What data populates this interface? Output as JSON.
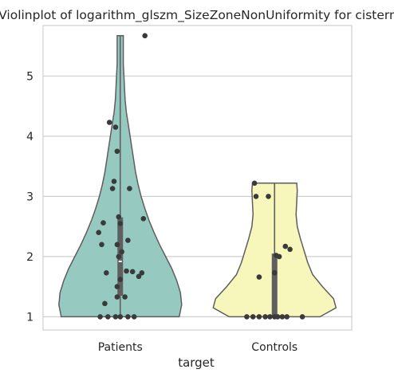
{
  "chart_data": {
    "type": "violin",
    "title": "Violinplot of logarithm_glszm_SizeZoneNonUniformity for cistern",
    "xlabel": "target",
    "ylabel": "",
    "categories": [
      "Patients",
      "Controls"
    ],
    "y_ticks": [
      "1",
      "2",
      "3",
      "4",
      "5"
    ],
    "ylim": [
      0.78,
      5.84
    ],
    "grid": "horizontal",
    "colors": {
      "Patients": "#96cac0",
      "Controls": "#f7f7bb",
      "outline": "#5e5e5e",
      "points": "#3a3a3a",
      "box": "#5f5f5f",
      "median": "#ffffff",
      "grid": "#cfcfcf"
    },
    "series": [
      {
        "category": "Patients",
        "min": 1.0,
        "max": 5.67,
        "q1": 1.35,
        "median": 1.92,
        "q3": 2.65,
        "density": [
          [
            1.0,
            0.96
          ],
          [
            1.2,
            1.0
          ],
          [
            1.4,
            0.98
          ],
          [
            1.6,
            0.92
          ],
          [
            1.8,
            0.84
          ],
          [
            2.0,
            0.74
          ],
          [
            2.2,
            0.64
          ],
          [
            2.4,
            0.55
          ],
          [
            2.6,
            0.47
          ],
          [
            2.8,
            0.4
          ],
          [
            3.0,
            0.34
          ],
          [
            3.2,
            0.29
          ],
          [
            3.4,
            0.25
          ],
          [
            3.6,
            0.22
          ],
          [
            3.8,
            0.19
          ],
          [
            4.0,
            0.16
          ],
          [
            4.2,
            0.13
          ],
          [
            4.4,
            0.1
          ],
          [
            4.6,
            0.08
          ],
          [
            4.8,
            0.07
          ],
          [
            5.0,
            0.06
          ],
          [
            5.2,
            0.05
          ],
          [
            5.4,
            0.05
          ],
          [
            5.67,
            0.05
          ]
        ],
        "points": [
          [
            -0.13,
            1.0
          ],
          [
            -0.08,
            1.0
          ],
          [
            -0.03,
            1.0
          ],
          [
            0.0,
            1.0
          ],
          [
            0.05,
            1.0
          ],
          [
            0.09,
            1.0
          ],
          [
            -0.1,
            1.22
          ],
          [
            -0.02,
            1.33
          ],
          [
            0.03,
            1.33
          ],
          [
            -0.02,
            1.5
          ],
          [
            -0.09,
            1.73
          ],
          [
            0.0,
            1.62
          ],
          [
            0.08,
            1.75
          ],
          [
            0.12,
            1.67
          ],
          [
            0.14,
            1.73
          ],
          [
            0.04,
            1.76
          ],
          [
            -0.01,
            2.0
          ],
          [
            0.01,
            2.08
          ],
          [
            -0.02,
            2.2
          ],
          [
            -0.12,
            2.2
          ],
          [
            0.05,
            2.27
          ],
          [
            -0.14,
            2.4
          ],
          [
            -0.11,
            2.56
          ],
          [
            0.0,
            2.55
          ],
          [
            -0.01,
            2.66
          ],
          [
            0.15,
            2.63
          ],
          [
            -0.05,
            3.13
          ],
          [
            0.06,
            3.13
          ],
          [
            -0.04,
            3.25
          ],
          [
            -0.02,
            3.75
          ],
          [
            -0.03,
            4.15
          ],
          [
            -0.07,
            4.23
          ],
          [
            0.16,
            5.67
          ]
        ]
      },
      {
        "category": "Controls",
        "min": 1.0,
        "max": 3.22,
        "q1": 1.0,
        "median": 1.0,
        "q3": 2.05,
        "density": [
          [
            1.0,
            0.74
          ],
          [
            1.15,
            1.0
          ],
          [
            1.3,
            0.96
          ],
          [
            1.5,
            0.78
          ],
          [
            1.7,
            0.62
          ],
          [
            1.9,
            0.54
          ],
          [
            2.1,
            0.48
          ],
          [
            2.3,
            0.42
          ],
          [
            2.5,
            0.37
          ],
          [
            2.7,
            0.35
          ],
          [
            2.9,
            0.36
          ],
          [
            3.1,
            0.37
          ],
          [
            3.22,
            0.36
          ]
        ],
        "points": [
          [
            -0.18,
            1.0
          ],
          [
            -0.14,
            1.0
          ],
          [
            -0.1,
            1.0
          ],
          [
            -0.06,
            1.0
          ],
          [
            -0.03,
            1.0
          ],
          [
            0.0,
            1.0
          ],
          [
            0.02,
            1.0
          ],
          [
            0.05,
            1.0
          ],
          [
            0.08,
            1.0
          ],
          [
            0.18,
            1.0
          ],
          [
            -0.1,
            1.66
          ],
          [
            0.0,
            1.73
          ],
          [
            0.03,
            2.0
          ],
          [
            0.01,
            2.02
          ],
          [
            0.07,
            2.17
          ],
          [
            0.1,
            2.12
          ],
          [
            -0.12,
            3.0
          ],
          [
            -0.04,
            3.0
          ],
          [
            -0.13,
            3.22
          ]
        ]
      }
    ]
  }
}
